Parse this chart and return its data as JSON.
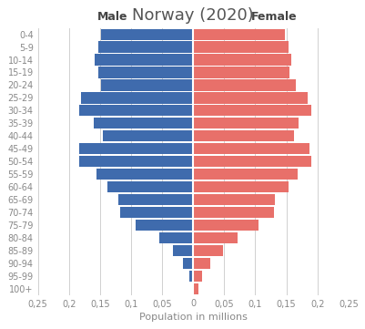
{
  "title": "Norway (2020)",
  "xlabel": "Population in millions",
  "male_label": "Male",
  "female_label": "Female",
  "age_groups": [
    "100+",
    "95-99",
    "90-94",
    "85-89",
    "80-84",
    "75-79",
    "70-74",
    "65-69",
    "60-64",
    "55-59",
    "50-54",
    "45-49",
    "40-44",
    "35-39",
    "30-34",
    "25-29",
    "20-24",
    "15-19",
    "10-14",
    "5-9",
    "0-4"
  ],
  "male_values": [
    0.002,
    0.006,
    0.016,
    0.033,
    0.054,
    0.092,
    0.118,
    0.12,
    0.138,
    0.155,
    0.183,
    0.183,
    0.145,
    0.16,
    0.183,
    0.18,
    0.148,
    0.152,
    0.158,
    0.152,
    0.148
  ],
  "female_values": [
    0.008,
    0.014,
    0.028,
    0.048,
    0.072,
    0.105,
    0.13,
    0.132,
    0.153,
    0.168,
    0.19,
    0.188,
    0.162,
    0.17,
    0.19,
    0.185,
    0.165,
    0.155,
    0.158,
    0.153,
    0.148
  ],
  "male_color": "#3F6BAD",
  "female_color": "#E8706A",
  "xlim": 0.25,
  "tick_labels": [
    "0,25",
    "0,2",
    "0,15",
    "0,1",
    "0,05",
    "0",
    "0,05",
    "0,1",
    "0,15",
    "0,2",
    "0,25"
  ],
  "background_color": "#ffffff",
  "grid_color": "#d0d0d0",
  "title_fontsize": 13,
  "label_fontsize": 7,
  "axis_label_fontsize": 8
}
